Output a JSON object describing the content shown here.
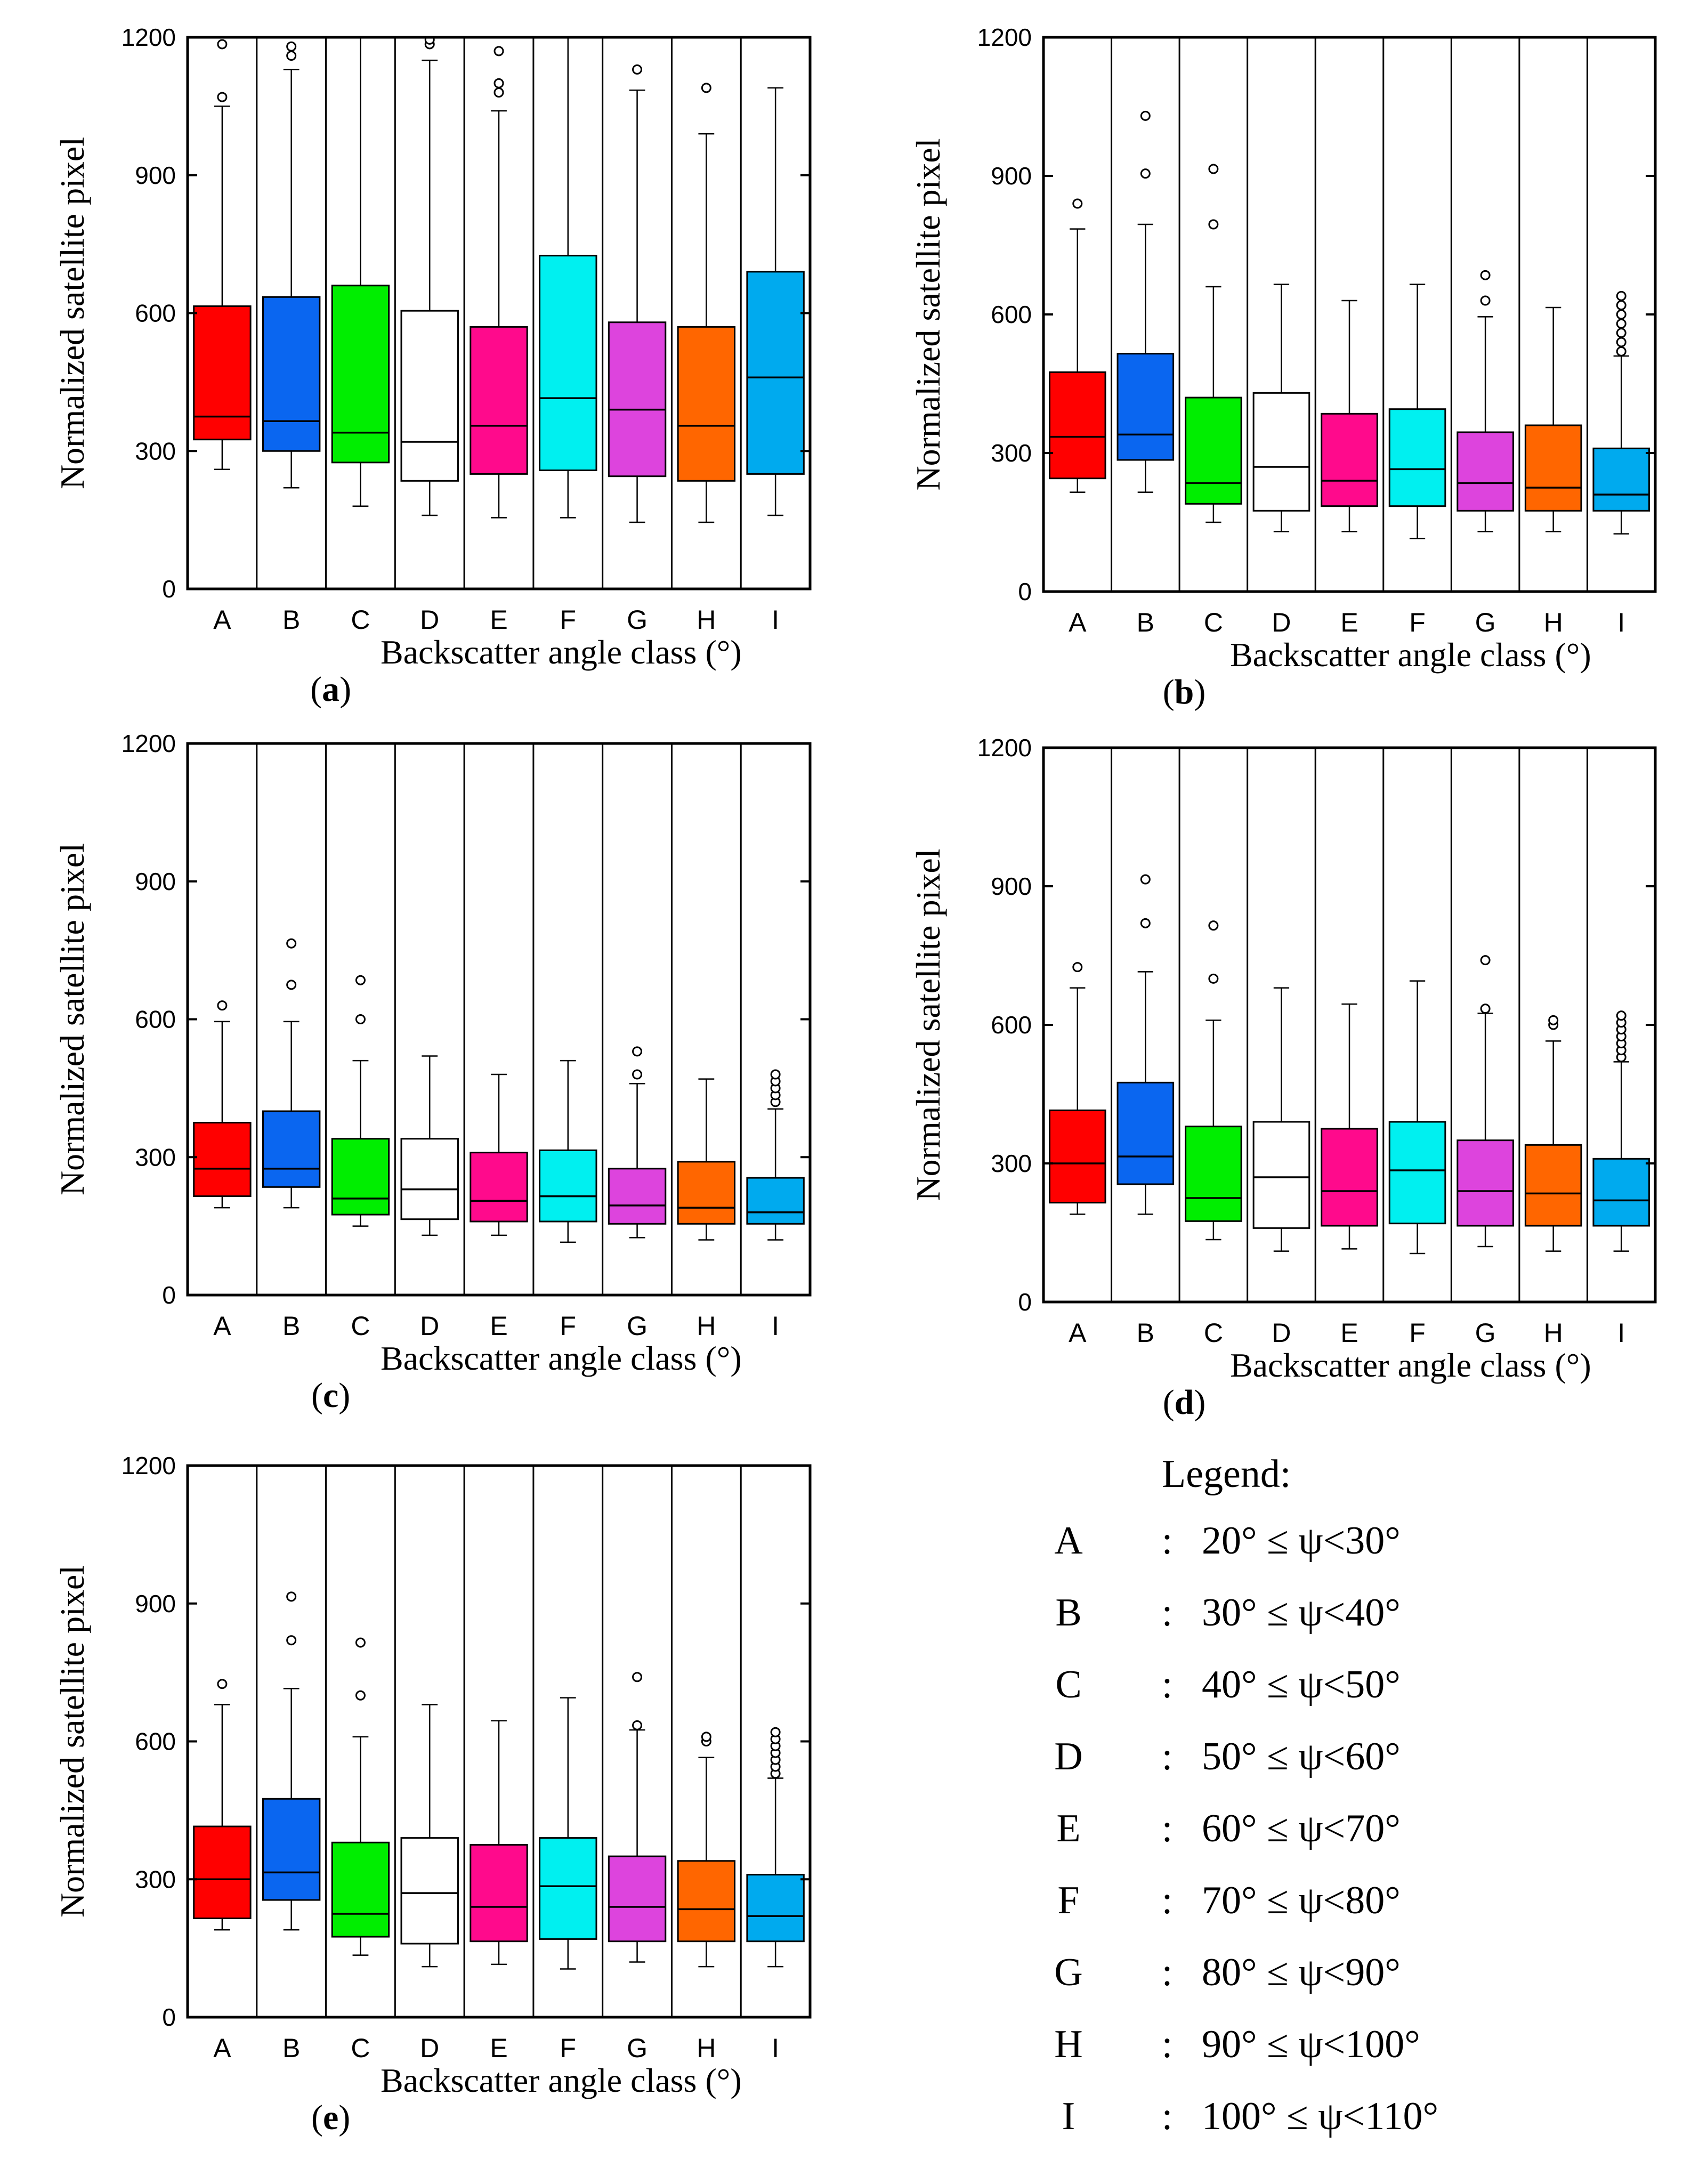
{
  "chart_data": [
    {
      "type": "box",
      "panel": "a",
      "ylabel": "Normalized satellite pixel",
      "xlabel": "Backscatter angle class (°)",
      "yticks": [
        "0",
        "300",
        "600",
        "900",
        "1200"
      ],
      "ylim": [
        0,
        1200
      ],
      "categories": [
        "A",
        "B",
        "C",
        "D",
        "E",
        "F",
        "G",
        "H",
        "I"
      ],
      "boxes": [
        {
          "whisker_low": 260,
          "q1": 325,
          "median": 375,
          "q3": 615,
          "whisker_high": 1050,
          "outliers": [
            1070,
            1185
          ]
        },
        {
          "whisker_low": 220,
          "q1": 300,
          "median": 365,
          "q3": 635,
          "whisker_high": 1130,
          "outliers": [
            1160,
            1180
          ]
        },
        {
          "whisker_low": 180,
          "q1": 275,
          "median": 340,
          "q3": 660,
          "whisker_high": 1200,
          "outliers": []
        },
        {
          "whisker_low": 160,
          "q1": 235,
          "median": 320,
          "q3": 605,
          "whisker_high": 1150,
          "outliers": [
            1185,
            1195
          ]
        },
        {
          "whisker_low": 155,
          "q1": 250,
          "median": 355,
          "q3": 570,
          "whisker_high": 1040,
          "outliers": [
            1080,
            1100,
            1170
          ]
        },
        {
          "whisker_low": 155,
          "q1": 258,
          "median": 415,
          "q3": 725,
          "whisker_high": 1200,
          "outliers": []
        },
        {
          "whisker_low": 145,
          "q1": 245,
          "median": 390,
          "q3": 580,
          "whisker_high": 1085,
          "outliers": [
            1130
          ]
        },
        {
          "whisker_low": 145,
          "q1": 235,
          "median": 355,
          "q3": 570,
          "whisker_high": 990,
          "outliers": [
            1090
          ]
        },
        {
          "whisker_low": 160,
          "q1": 250,
          "median": 460,
          "q3": 690,
          "whisker_high": 1090,
          "outliers": []
        }
      ]
    },
    {
      "type": "box",
      "panel": "b",
      "ylabel": "Normalized satellite pixel",
      "xlabel": "Backscatter angle class (°)",
      "yticks": [
        "0",
        "300",
        "600",
        "900",
        "1200"
      ],
      "ylim": [
        0,
        1200
      ],
      "categories": [
        "A",
        "B",
        "C",
        "D",
        "E",
        "F",
        "G",
        "H",
        "I"
      ],
      "boxes": [
        {
          "whisker_low": 215,
          "q1": 245,
          "median": 335,
          "q3": 475,
          "whisker_high": 785,
          "outliers": [
            840
          ]
        },
        {
          "whisker_low": 215,
          "q1": 285,
          "median": 340,
          "q3": 515,
          "whisker_high": 795,
          "outliers": [
            905,
            1030
          ]
        },
        {
          "whisker_low": 150,
          "q1": 190,
          "median": 235,
          "q3": 420,
          "whisker_high": 660,
          "outliers": [
            795,
            915
          ]
        },
        {
          "whisker_low": 130,
          "q1": 175,
          "median": 270,
          "q3": 430,
          "whisker_high": 665,
          "outliers": []
        },
        {
          "whisker_low": 130,
          "q1": 185,
          "median": 240,
          "q3": 385,
          "whisker_high": 630,
          "outliers": []
        },
        {
          "whisker_low": 115,
          "q1": 185,
          "median": 265,
          "q3": 395,
          "whisker_high": 665,
          "outliers": []
        },
        {
          "whisker_low": 130,
          "q1": 175,
          "median": 235,
          "q3": 345,
          "whisker_high": 595,
          "outliers": [
            630,
            685
          ]
        },
        {
          "whisker_low": 130,
          "q1": 175,
          "median": 225,
          "q3": 360,
          "whisker_high": 615,
          "outliers": []
        },
        {
          "whisker_low": 125,
          "q1": 175,
          "median": 210,
          "q3": 310,
          "whisker_high": 510,
          "outliers": [
            520,
            540,
            560,
            580,
            600,
            620,
            640
          ]
        }
      ]
    },
    {
      "type": "box",
      "panel": "c",
      "ylabel": "Normalized satellite pixel",
      "xlabel": "Backscatter angle class (°)",
      "yticks": [
        "0",
        "300",
        "600",
        "900",
        "1200"
      ],
      "ylim": [
        0,
        1200
      ],
      "categories": [
        "A",
        "B",
        "C",
        "D",
        "E",
        "F",
        "G",
        "H",
        "I"
      ],
      "boxes": [
        {
          "whisker_low": 190,
          "q1": 215,
          "median": 275,
          "q3": 375,
          "whisker_high": 595,
          "outliers": [
            630
          ]
        },
        {
          "whisker_low": 190,
          "q1": 235,
          "median": 275,
          "q3": 400,
          "whisker_high": 595,
          "outliers": [
            675,
            765
          ]
        },
        {
          "whisker_low": 150,
          "q1": 175,
          "median": 210,
          "q3": 340,
          "whisker_high": 510,
          "outliers": [
            600,
            685
          ]
        },
        {
          "whisker_low": 130,
          "q1": 165,
          "median": 230,
          "q3": 340,
          "whisker_high": 520,
          "outliers": []
        },
        {
          "whisker_low": 130,
          "q1": 160,
          "median": 205,
          "q3": 310,
          "whisker_high": 480,
          "outliers": []
        },
        {
          "whisker_low": 115,
          "q1": 160,
          "median": 215,
          "q3": 315,
          "whisker_high": 510,
          "outliers": []
        },
        {
          "whisker_low": 125,
          "q1": 155,
          "median": 195,
          "q3": 275,
          "whisker_high": 460,
          "outliers": [
            480,
            530
          ]
        },
        {
          "whisker_low": 120,
          "q1": 155,
          "median": 190,
          "q3": 290,
          "whisker_high": 470,
          "outliers": []
        },
        {
          "whisker_low": 120,
          "q1": 155,
          "median": 180,
          "q3": 255,
          "whisker_high": 405,
          "outliers": [
            420,
            435,
            450,
            465,
            480
          ]
        }
      ]
    },
    {
      "type": "box",
      "panel": "d",
      "ylabel": "Normalized satellite pixel",
      "xlabel": "Backscatter angle class (°)",
      "yticks": [
        "0",
        "300",
        "600",
        "900",
        "1200"
      ],
      "ylim": [
        0,
        1200
      ],
      "categories": [
        "A",
        "B",
        "C",
        "D",
        "E",
        "F",
        "G",
        "H",
        "I"
      ],
      "boxes": [
        {
          "whisker_low": 190,
          "q1": 215,
          "median": 300,
          "q3": 415,
          "whisker_high": 680,
          "outliers": [
            725
          ]
        },
        {
          "whisker_low": 190,
          "q1": 255,
          "median": 315,
          "q3": 475,
          "whisker_high": 715,
          "outliers": [
            820,
            915
          ]
        },
        {
          "whisker_low": 135,
          "q1": 175,
          "median": 225,
          "q3": 380,
          "whisker_high": 610,
          "outliers": [
            700,
            815
          ]
        },
        {
          "whisker_low": 110,
          "q1": 160,
          "median": 270,
          "q3": 390,
          "whisker_high": 680,
          "outliers": []
        },
        {
          "whisker_low": 115,
          "q1": 165,
          "median": 240,
          "q3": 375,
          "whisker_high": 645,
          "outliers": []
        },
        {
          "whisker_low": 105,
          "q1": 170,
          "median": 285,
          "q3": 390,
          "whisker_high": 695,
          "outliers": []
        },
        {
          "whisker_low": 120,
          "q1": 165,
          "median": 240,
          "q3": 350,
          "whisker_high": 625,
          "outliers": [
            635,
            740
          ]
        },
        {
          "whisker_low": 110,
          "q1": 165,
          "median": 235,
          "q3": 340,
          "whisker_high": 565,
          "outliers": [
            600,
            610
          ]
        },
        {
          "whisker_low": 110,
          "q1": 165,
          "median": 220,
          "q3": 310,
          "whisker_high": 520,
          "outliers": [
            530,
            545,
            560,
            575,
            590,
            605,
            620
          ]
        }
      ]
    },
    {
      "type": "box",
      "panel": "e",
      "ylabel": "Normalized satellite pixel",
      "xlabel": "Backscatter angle class (°)",
      "yticks": [
        "0",
        "300",
        "600",
        "900",
        "1200"
      ],
      "ylim": [
        0,
        1200
      ],
      "categories": [
        "A",
        "B",
        "C",
        "D",
        "E",
        "F",
        "G",
        "H",
        "I"
      ],
      "boxes": [
        {
          "whisker_low": 190,
          "q1": 215,
          "median": 300,
          "q3": 415,
          "whisker_high": 680,
          "outliers": [
            725
          ]
        },
        {
          "whisker_low": 190,
          "q1": 255,
          "median": 315,
          "q3": 475,
          "whisker_high": 715,
          "outliers": [
            820,
            915
          ]
        },
        {
          "whisker_low": 135,
          "q1": 175,
          "median": 225,
          "q3": 380,
          "whisker_high": 610,
          "outliers": [
            700,
            815
          ]
        },
        {
          "whisker_low": 110,
          "q1": 160,
          "median": 270,
          "q3": 390,
          "whisker_high": 680,
          "outliers": []
        },
        {
          "whisker_low": 115,
          "q1": 165,
          "median": 240,
          "q3": 375,
          "whisker_high": 645,
          "outliers": []
        },
        {
          "whisker_low": 105,
          "q1": 170,
          "median": 285,
          "q3": 390,
          "whisker_high": 695,
          "outliers": []
        },
        {
          "whisker_low": 120,
          "q1": 165,
          "median": 240,
          "q3": 350,
          "whisker_high": 625,
          "outliers": [
            635,
            740
          ]
        },
        {
          "whisker_low": 110,
          "q1": 165,
          "median": 235,
          "q3": 340,
          "whisker_high": 565,
          "outliers": [
            600,
            610
          ]
        },
        {
          "whisker_low": 110,
          "q1": 165,
          "median": 220,
          "q3": 310,
          "whisker_high": 520,
          "outliers": [
            530,
            545,
            560,
            575,
            590,
            605,
            620
          ]
        }
      ]
    }
  ],
  "colors": {
    "A": "#ff0000",
    "B": "#0a66f0",
    "C": "#00ee00",
    "D": "#ffffff",
    "E": "#ff0a8c",
    "F": "#00f0f0",
    "G": "#dd44dd",
    "H": "#ff6600",
    "I": "#00aaee"
  },
  "legend": {
    "title": "Legend:",
    "items": [
      {
        "label": "A",
        "sep": ":",
        "range": "20° ≤ ψ<30°"
      },
      {
        "label": "B",
        "sep": ":",
        "range": "30° ≤ ψ<40°"
      },
      {
        "label": "C",
        "sep": ":",
        "range": "40° ≤ ψ<50°"
      },
      {
        "label": "D",
        "sep": ":",
        "range": "50° ≤ ψ<60°"
      },
      {
        "label": "E",
        "sep": ":",
        "range": "60° ≤ ψ<70°"
      },
      {
        "label": "F",
        "sep": ":",
        "range": "70° ≤ ψ<80°"
      },
      {
        "label": "G",
        "sep": ":",
        "range": "80° ≤ ψ<90°"
      },
      {
        "label": "H",
        "sep": ":",
        "range": "90° ≤ ψ<100°"
      },
      {
        "label": "I",
        "sep": ":",
        "range": "100° ≤ ψ<110°"
      }
    ]
  }
}
